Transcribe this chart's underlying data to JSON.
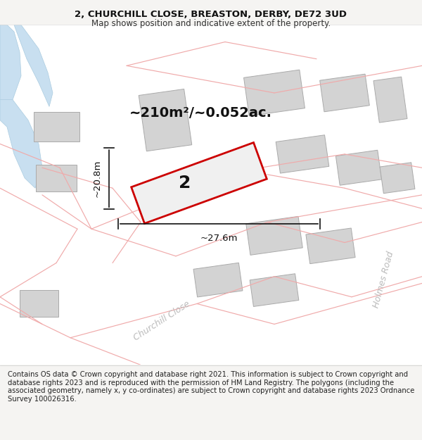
{
  "title_line1": "2, CHURCHILL CLOSE, BREASTON, DERBY, DE72 3UD",
  "title_line2": "Map shows position and indicative extent of the property.",
  "footer_text": "Contains OS data © Crown copyright and database right 2021. This information is subject to Crown copyright and database rights 2023 and is reproduced with the permission of HM Land Registry. The polygons (including the associated geometry, namely x, y co-ordinates) are subject to Crown copyright and database rights 2023 Ordnance Survey 100026316.",
  "area_label": "~210m²/~0.052ac.",
  "property_number": "2",
  "width_label": "~27.6m",
  "height_label": "~20.8m",
  "bg_color": "#f5f4f2",
  "map_bg": "#ffffff",
  "property_fill": "#f0f0f0",
  "property_edge": "#cc0000",
  "water_color": "#c8dff0",
  "building_color": "#d3d3d3",
  "building_edge": "#aaaaaa",
  "pink_line": "#f0aaaa",
  "dim_line_color": "#111111",
  "title_fontsize": 9.5,
  "subtitle_fontsize": 8.5,
  "area_fontsize": 14,
  "prop_num_fontsize": 18,
  "footer_fontsize": 7.2,
  "road_label_color": "#bbbbbb"
}
